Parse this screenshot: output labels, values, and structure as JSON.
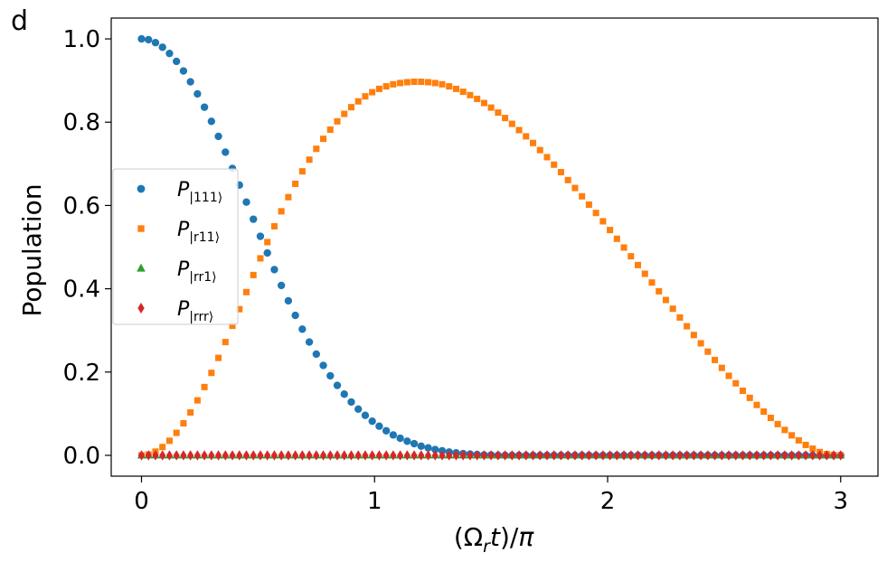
{
  "panel_label": "d",
  "chart_data": {
    "type": "scatter",
    "title": "",
    "xlabel": "(Ω_r t)/π",
    "ylabel": "Population",
    "xlim": [
      -0.13,
      3.16
    ],
    "ylim": [
      -0.05,
      1.05
    ],
    "x_ticks": [
      0,
      1,
      2,
      3
    ],
    "x_tick_labels": [
      "0",
      "1",
      "2",
      "3"
    ],
    "y_ticks": [
      0.0,
      0.2,
      0.4,
      0.6,
      0.8,
      1.0
    ],
    "y_tick_labels": [
      "0.0",
      "0.2",
      "0.4",
      "0.6",
      "0.8",
      "1.0"
    ],
    "grid": false,
    "legend_placement": "center-left",
    "x": [
      0.0,
      0.03,
      0.06,
      0.09,
      0.12,
      0.15,
      0.18,
      0.21,
      0.24,
      0.27,
      0.3,
      0.33,
      0.36,
      0.39,
      0.42,
      0.45,
      0.48,
      0.51,
      0.54,
      0.57,
      0.6,
      0.63,
      0.66,
      0.69,
      0.72,
      0.75,
      0.78,
      0.81,
      0.84,
      0.87,
      0.9,
      0.93,
      0.96,
      0.99,
      1.02,
      1.05,
      1.08,
      1.11,
      1.14,
      1.17,
      1.2,
      1.23,
      1.26,
      1.29,
      1.32,
      1.35,
      1.38,
      1.41,
      1.44,
      1.47,
      1.5,
      1.53,
      1.56,
      1.59,
      1.62,
      1.65,
      1.68,
      1.71,
      1.74,
      1.77,
      1.8,
      1.83,
      1.86,
      1.89,
      1.92,
      1.95,
      1.98,
      2.01,
      2.04,
      2.07,
      2.1,
      2.13,
      2.16,
      2.19,
      2.22,
      2.25,
      2.28,
      2.31,
      2.34,
      2.37,
      2.4,
      2.43,
      2.46,
      2.49,
      2.52,
      2.55,
      2.58,
      2.61,
      2.64,
      2.67,
      2.7,
      2.73,
      2.76,
      2.79,
      2.82,
      2.85,
      2.88,
      2.91,
      2.94,
      2.97,
      3.0
    ],
    "series": [
      {
        "name": "P|111⟩",
        "color": "#1f77b4",
        "marker": "circle",
        "values": [
          1.0,
          0.998,
          0.991,
          0.98,
          0.965,
          0.946,
          0.923,
          0.897,
          0.868,
          0.836,
          0.802,
          0.766,
          0.728,
          0.689,
          0.649,
          0.608,
          0.567,
          0.526,
          0.486,
          0.446,
          0.408,
          0.371,
          0.336,
          0.303,
          0.272,
          0.243,
          0.216,
          0.191,
          0.168,
          0.147,
          0.128,
          0.111,
          0.096,
          0.082,
          0.07,
          0.059,
          0.049,
          0.041,
          0.034,
          0.028,
          0.022,
          0.018,
          0.014,
          0.011,
          0.008,
          0.006,
          0.004,
          0.003,
          0.002,
          0.001,
          0.001,
          0.0,
          0.0,
          0.0,
          0.0,
          0.0,
          0.0,
          0.0,
          0.0,
          0.0,
          0.0,
          0.0,
          0.0,
          0.0,
          0.0,
          0.0,
          0.0,
          0.0,
          0.0,
          0.0,
          0.0,
          0.0,
          0.0,
          0.0,
          0.0,
          0.0,
          0.0,
          0.0,
          0.0,
          0.0,
          0.0,
          0.0,
          0.0,
          0.0,
          0.0,
          0.0,
          0.0,
          0.0,
          0.0,
          0.0,
          0.0,
          0.0,
          0.0,
          0.0,
          0.0,
          0.0,
          0.0,
          0.0,
          0.0,
          0.0,
          0.0
        ]
      },
      {
        "name": "P|r11⟩",
        "color": "#ff7f0e",
        "marker": "square",
        "values": [
          0.0,
          0.002,
          0.009,
          0.02,
          0.035,
          0.054,
          0.077,
          0.103,
          0.132,
          0.164,
          0.198,
          0.234,
          0.272,
          0.311,
          0.351,
          0.392,
          0.433,
          0.473,
          0.512,
          0.55,
          0.586,
          0.62,
          0.652,
          0.682,
          0.71,
          0.736,
          0.76,
          0.782,
          0.802,
          0.82,
          0.836,
          0.85,
          0.862,
          0.872,
          0.88,
          0.886,
          0.891,
          0.894,
          0.896,
          0.897,
          0.897,
          0.896,
          0.894,
          0.891,
          0.886,
          0.88,
          0.873,
          0.865,
          0.856,
          0.846,
          0.835,
          0.823,
          0.81,
          0.796,
          0.781,
          0.766,
          0.75,
          0.733,
          0.716,
          0.698,
          0.68,
          0.661,
          0.642,
          0.622,
          0.602,
          0.582,
          0.562,
          0.541,
          0.52,
          0.499,
          0.478,
          0.457,
          0.436,
          0.415,
          0.394,
          0.373,
          0.352,
          0.331,
          0.31,
          0.289,
          0.269,
          0.249,
          0.229,
          0.21,
          0.191,
          0.173,
          0.155,
          0.138,
          0.121,
          0.105,
          0.09,
          0.075,
          0.061,
          0.048,
          0.036,
          0.025,
          0.016,
          0.008,
          0.003,
          0.001,
          0.0
        ]
      },
      {
        "name": "P|rr1⟩",
        "color": "#2ca02c",
        "marker": "triangle",
        "values": [
          0.0,
          0.0,
          0.0,
          0.0,
          0.0,
          0.0,
          0.0,
          0.0,
          0.0,
          0.0,
          0.0,
          0.0,
          0.0,
          0.0,
          0.0,
          0.0,
          0.0,
          0.0,
          0.0,
          0.0,
          0.0,
          0.0,
          0.0,
          0.0,
          0.0,
          0.0,
          0.0,
          0.0,
          0.0,
          0.0,
          0.0,
          0.0,
          0.0,
          0.0,
          0.0,
          0.0,
          0.0,
          0.0,
          0.0,
          0.0,
          0.0,
          0.0,
          0.0,
          0.0,
          0.0,
          0.0,
          0.0,
          0.0,
          0.0,
          0.0,
          0.0,
          0.0,
          0.0,
          0.0,
          0.0,
          0.0,
          0.0,
          0.0,
          0.0,
          0.0,
          0.0,
          0.0,
          0.0,
          0.0,
          0.0,
          0.0,
          0.0,
          0.0,
          0.0,
          0.0,
          0.0,
          0.0,
          0.0,
          0.0,
          0.0,
          0.0,
          0.0,
          0.0,
          0.0,
          0.0,
          0.0,
          0.0,
          0.0,
          0.0,
          0.0,
          0.0,
          0.0,
          0.0,
          0.0,
          0.0,
          0.0,
          0.0,
          0.0,
          0.0,
          0.0,
          0.0,
          0.0,
          0.0,
          0.0,
          0.0,
          0.0
        ]
      },
      {
        "name": "P|rrr⟩",
        "color": "#d62728",
        "marker": "diamond",
        "values": [
          0.0,
          0.0,
          0.0,
          0.0,
          0.0,
          0.0,
          0.0,
          0.0,
          0.0,
          0.0,
          0.0,
          0.0,
          0.0,
          0.0,
          0.0,
          0.0,
          0.0,
          0.0,
          0.0,
          0.0,
          0.0,
          0.0,
          0.0,
          0.0,
          0.0,
          0.0,
          0.0,
          0.0,
          0.0,
          0.0,
          0.0,
          0.0,
          0.0,
          0.0,
          0.0,
          0.0,
          0.0,
          0.0,
          0.0,
          0.0,
          0.0,
          0.0,
          0.0,
          0.0,
          0.0,
          0.0,
          0.0,
          0.0,
          0.0,
          0.0,
          0.0,
          0.0,
          0.0,
          0.0,
          0.0,
          0.0,
          0.0,
          0.0,
          0.0,
          0.0,
          0.0,
          0.0,
          0.0,
          0.0,
          0.0,
          0.0,
          0.0,
          0.0,
          0.0,
          0.0,
          0.0,
          0.0,
          0.0,
          0.0,
          0.0,
          0.0,
          0.0,
          0.0,
          0.0,
          0.0,
          0.0,
          0.0,
          0.0,
          0.0,
          0.0,
          0.0,
          0.0,
          0.0,
          0.0,
          0.0,
          0.0,
          0.0,
          0.0,
          0.0,
          0.0,
          0.0,
          0.0,
          0.0,
          0.0,
          0.0,
          0.0
        ]
      }
    ]
  }
}
